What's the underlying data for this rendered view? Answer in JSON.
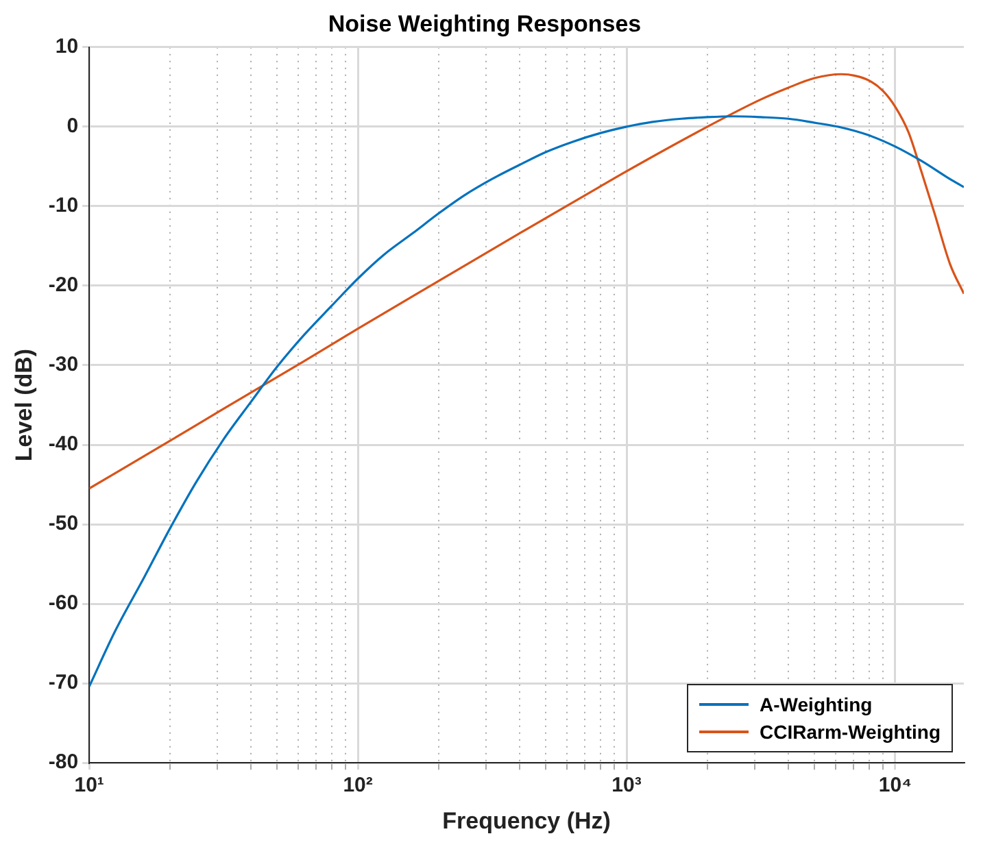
{
  "chart_data": {
    "type": "line",
    "title": "Noise Weighting Responses",
    "xlabel": "Frequency (Hz)",
    "ylabel": "Level (dB)",
    "log": "x",
    "xlim": [
      10,
      18000
    ],
    "ylim": [
      -80,
      10
    ],
    "xticks": [
      {
        "value": 10,
        "label": "10¹"
      },
      {
        "value": 20,
        "label": null
      },
      {
        "value": 30,
        "label": null
      },
      {
        "value": 40,
        "label": null
      },
      {
        "value": 50,
        "label": null
      },
      {
        "value": 60,
        "label": null
      },
      {
        "value": 70,
        "label": null
      },
      {
        "value": 80,
        "label": null
      },
      {
        "value": 90,
        "label": null
      },
      {
        "value": 100,
        "label": "10²"
      },
      {
        "value": 200,
        "label": null
      },
      {
        "value": 300,
        "label": null
      },
      {
        "value": 400,
        "label": null
      },
      {
        "value": 500,
        "label": null
      },
      {
        "value": 600,
        "label": null
      },
      {
        "value": 700,
        "label": null
      },
      {
        "value": 800,
        "label": null
      },
      {
        "value": 900,
        "label": null
      },
      {
        "value": 1000,
        "label": "10³"
      },
      {
        "value": 2000,
        "label": null
      },
      {
        "value": 3000,
        "label": null
      },
      {
        "value": 4000,
        "label": null
      },
      {
        "value": 5000,
        "label": null
      },
      {
        "value": 6000,
        "label": null
      },
      {
        "value": 7000,
        "label": null
      },
      {
        "value": 8000,
        "label": null
      },
      {
        "value": 9000,
        "label": null
      },
      {
        "value": 10000,
        "label": "10⁴"
      }
    ],
    "yticks": [
      -80,
      -70,
      -60,
      -50,
      -40,
      -30,
      -20,
      -10,
      0,
      10
    ],
    "grid": true,
    "legend": "bottom right",
    "marker": "none",
    "line_style": "solid",
    "series": [
      {
        "name": "A-Weighting",
        "color": "#0072bd",
        "x": [
          10,
          12.5,
          16,
          20,
          25,
          31.5,
          40,
          50,
          63,
          80,
          100,
          125,
          160,
          200,
          250,
          315,
          400,
          500,
          630,
          800,
          1000,
          1250,
          1600,
          2000,
          2500,
          3150,
          4000,
          5000,
          6300,
          8000,
          10000,
          12500,
          16000,
          18000
        ],
        "values": [
          -70.4,
          -63.4,
          -56.7,
          -50.5,
          -44.7,
          -39.4,
          -34.6,
          -30.2,
          -26.2,
          -22.5,
          -19.1,
          -16.1,
          -13.4,
          -10.9,
          -8.6,
          -6.6,
          -4.8,
          -3.2,
          -1.9,
          -0.8,
          0,
          0.6,
          1,
          1.2,
          1.3,
          1.2,
          1,
          0.5,
          -0.1,
          -1.1,
          -2.5,
          -4.3,
          -6.6,
          -7.6
        ]
      },
      {
        "name": "CCIRarm-Weighting",
        "color": "#d95319",
        "x": [
          10,
          20,
          31.5,
          63,
          100,
          200,
          400,
          800,
          1000,
          2000,
          3150,
          4000,
          5000,
          6300,
          7100,
          8000,
          9000,
          10000,
          11200,
          12500,
          14000,
          16000,
          18000
        ],
        "values": [
          -45.5,
          -39.5,
          -35.5,
          -29.5,
          -25.4,
          -19.4,
          -13.4,
          -7.5,
          -5.6,
          0,
          3.4,
          4.9,
          6.1,
          6.6,
          6.4,
          5.8,
          4.5,
          2.5,
          -0.7,
          -5.6,
          -10.9,
          -17.3,
          -21
        ]
      }
    ]
  }
}
